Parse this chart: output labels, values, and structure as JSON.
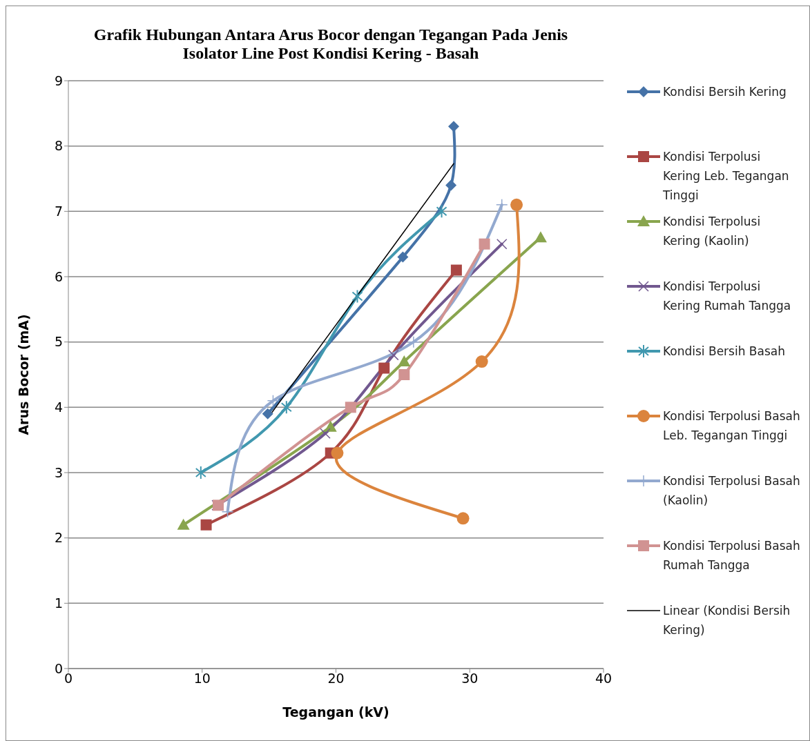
{
  "chart_data": {
    "type": "line",
    "title": "Grafik Hubungan Antara Arus Bocor dengan Tegangan Pada Jenis Isolator Line Post Kondisi Kering - Basah",
    "xlabel": "Tegangan (kV)",
    "ylabel": "Arus Bocor (mA)",
    "xlim": [
      0,
      40
    ],
    "xticks": [
      0,
      10,
      20,
      30,
      40
    ],
    "ylim": [
      0,
      9
    ],
    "yticks": [
      0,
      1,
      2,
      3,
      4,
      5,
      6,
      7,
      8,
      9
    ],
    "grid": "y",
    "legend": "right",
    "line_style": "solid",
    "series": [
      {
        "name": "Kondisi Bersih Kering",
        "color": "#4572a7",
        "marker": "diamond",
        "x": [
          14.9,
          25.0,
          28.6,
          28.8
        ],
        "values": [
          3.9,
          6.3,
          7.4,
          8.3
        ]
      },
      {
        "name": "Kondisi Terpolusi Kering Leb. Tegangan Tinggi",
        "color": "#aa4643",
        "marker": "square",
        "x": [
          10.3,
          19.6,
          23.6,
          29.0
        ],
        "values": [
          2.2,
          3.3,
          4.6,
          6.1
        ]
      },
      {
        "name": "Kondisi Terpolusi Kering (Kaolin)",
        "color": "#89a54e",
        "marker": "triangle",
        "x": [
          8.6,
          19.6,
          25.1,
          35.3
        ],
        "values": [
          2.2,
          3.7,
          4.7,
          6.6
        ]
      },
      {
        "name": "Kondisi Terpolusi Kering Rumah Tangga",
        "color": "#71588f",
        "marker": "cross",
        "x": [
          11.1,
          19.2,
          24.3,
          32.4
        ],
        "values": [
          2.5,
          3.6,
          4.8,
          6.5
        ]
      },
      {
        "name": "Kondisi Bersih Basah",
        "color": "#4198af",
        "marker": "cross",
        "x": [
          9.9,
          16.3,
          21.6,
          27.9
        ],
        "values": [
          3.0,
          4.0,
          5.7,
          7.0
        ]
      },
      {
        "name": "Kondisi Terpolusi Basah Leb. Tegangan Tinggi",
        "color": "#db843d",
        "marker": "circle",
        "x": [
          29.5,
          20.1,
          30.9,
          33.5
        ],
        "values": [
          2.3,
          3.3,
          4.7,
          7.1
        ]
      },
      {
        "name": "Kondisi Terpolusi Basah (Kaolin)",
        "color": "#93a9cf",
        "marker": "cross",
        "x": [
          11.9,
          15.3,
          25.8,
          32.4
        ],
        "values": [
          2.4,
          4.1,
          5.0,
          7.1
        ]
      },
      {
        "name": "Kondisi Terpolusi Basah Rumah Tangga",
        "color": "#d19392",
        "marker": "square",
        "x": [
          11.2,
          21.1,
          25.1,
          31.1
        ],
        "values": [
          2.5,
          4.0,
          4.5,
          6.5
        ]
      },
      {
        "name": "Linear (Kondisi Bersih Kering)",
        "color": "#000000",
        "marker": "none",
        "x": [
          15.0,
          28.8
        ],
        "values": [
          3.86,
          7.73
        ]
      }
    ]
  }
}
